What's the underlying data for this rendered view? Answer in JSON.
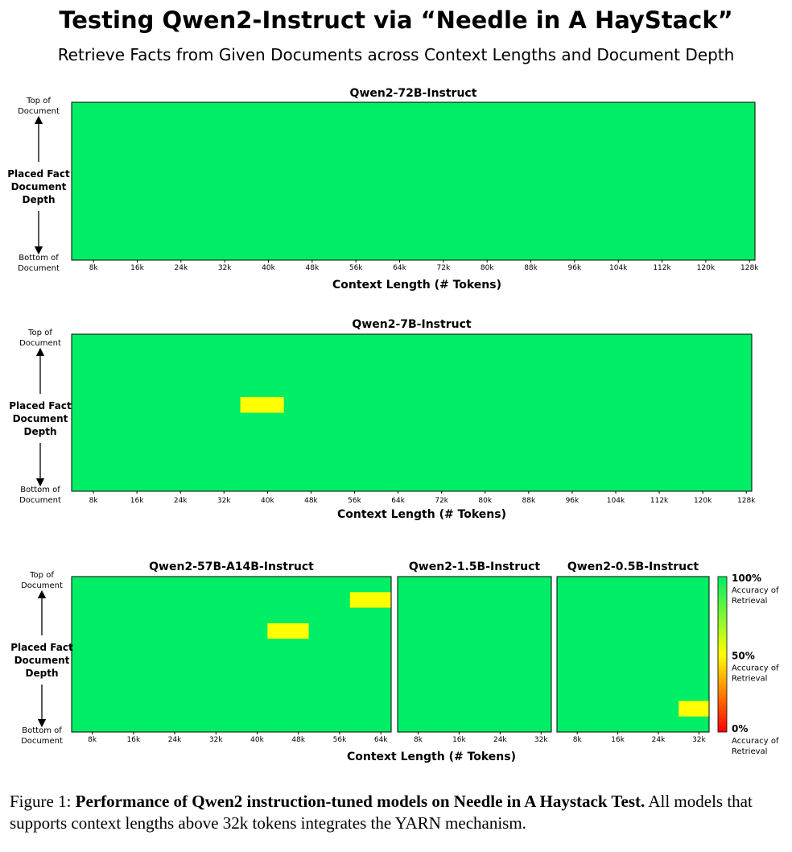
{
  "figure": {
    "title": "Testing Qwen2-Instruct via “Needle in A HayStack”",
    "subtitle": "Retrieve Facts from Given Documents across Context Lengths and Document Depth",
    "caption_label": "Figure 1: ",
    "caption_bold": "Performance of Qwen2 instruction-tuned models on Needle in A Haystack Test.",
    "caption_rest": " All models that supports context lengths above 32k tokens integrates the YARN mechanism."
  },
  "y_axis": {
    "top_label": [
      "Top of",
      "Document"
    ],
    "middle_label": [
      "Placed Fact",
      "Document",
      "Depth"
    ],
    "bottom_label": [
      "Bottom of",
      "Document"
    ]
  },
  "colors": {
    "high": "#00ee66",
    "mid": "#ffff00",
    "low": "#ff0000"
  },
  "colorbar": {
    "labels": [
      {
        "pct": "100%",
        "text": [
          "Accuracy of",
          "Retrieval"
        ],
        "value": 100
      },
      {
        "pct": "50%",
        "text": [
          "Accuracy of",
          "Retrieval"
        ],
        "value": 50
      },
      {
        "pct": "0%",
        "text": [
          "Accuracy of",
          "Retrieval"
        ],
        "value": 0
      }
    ]
  },
  "chart_data": [
    {
      "type": "heatmap",
      "title": "Qwen2-72B-Instruct",
      "xlabel": "Context Length (# Tokens)",
      "ylabel": "Placed Fact Document Depth",
      "x_ticks": [
        "8k",
        "16k",
        "24k",
        "32k",
        "40k",
        "48k",
        "56k",
        "64k",
        "72k",
        "80k",
        "88k",
        "96k",
        "104k",
        "112k",
        "120k",
        "128k"
      ],
      "x_range_k": [
        4,
        129
      ],
      "depth_range": [
        0,
        100
      ],
      "default_accuracy": 100,
      "cells": []
    },
    {
      "type": "heatmap",
      "title": "Qwen2-7B-Instruct",
      "xlabel": "Context Length (# Tokens)",
      "ylabel": "Placed Fact Document Depth",
      "x_ticks": [
        "8k",
        "16k",
        "24k",
        "32k",
        "40k",
        "48k",
        "56k",
        "64k",
        "72k",
        "80k",
        "88k",
        "96k",
        "104k",
        "112k",
        "120k",
        "128k"
      ],
      "x_range_k": [
        4,
        129
      ],
      "depth_range": [
        0,
        100
      ],
      "default_accuracy": 100,
      "cells": [
        {
          "x_from_k": 35,
          "x_to_k": 43,
          "depth_from": 40,
          "depth_to": 50,
          "accuracy": 50
        }
      ]
    },
    {
      "type": "heatmap",
      "title": "Qwen2-57B-A14B-Instruct",
      "xlabel": "Context Length (# Tokens)",
      "ylabel": "Placed Fact Document Depth",
      "x_ticks": [
        "8k",
        "16k",
        "24k",
        "32k",
        "40k",
        "48k",
        "56k",
        "64k"
      ],
      "x_range_k": [
        4,
        66
      ],
      "depth_range": [
        0,
        100
      ],
      "default_accuracy": 100,
      "cells": [
        {
          "x_from_k": 58,
          "x_to_k": 66,
          "depth_from": 10,
          "depth_to": 20,
          "accuracy": 50
        },
        {
          "x_from_k": 42,
          "x_to_k": 50,
          "depth_from": 30,
          "depth_to": 40,
          "accuracy": 50
        }
      ]
    },
    {
      "type": "heatmap",
      "title": "Qwen2-1.5B-Instruct",
      "xlabel": "Context Length (# Tokens)",
      "ylabel": "Placed Fact Document Depth",
      "x_ticks": [
        "8k",
        "16k",
        "24k",
        "32k"
      ],
      "x_range_k": [
        4,
        34
      ],
      "depth_range": [
        0,
        100
      ],
      "default_accuracy": 100,
      "cells": []
    },
    {
      "type": "heatmap",
      "title": "Qwen2-0.5B-Instruct",
      "xlabel": "Context Length (# Tokens)",
      "ylabel": "Placed Fact Document Depth",
      "x_ticks": [
        "8k",
        "16k",
        "24k",
        "32k"
      ],
      "x_range_k": [
        4,
        34
      ],
      "depth_range": [
        0,
        100
      ],
      "default_accuracy": 100,
      "cells": [
        {
          "x_from_k": 28,
          "x_to_k": 34,
          "depth_from": 80,
          "depth_to": 90,
          "accuracy": 50
        }
      ]
    }
  ]
}
